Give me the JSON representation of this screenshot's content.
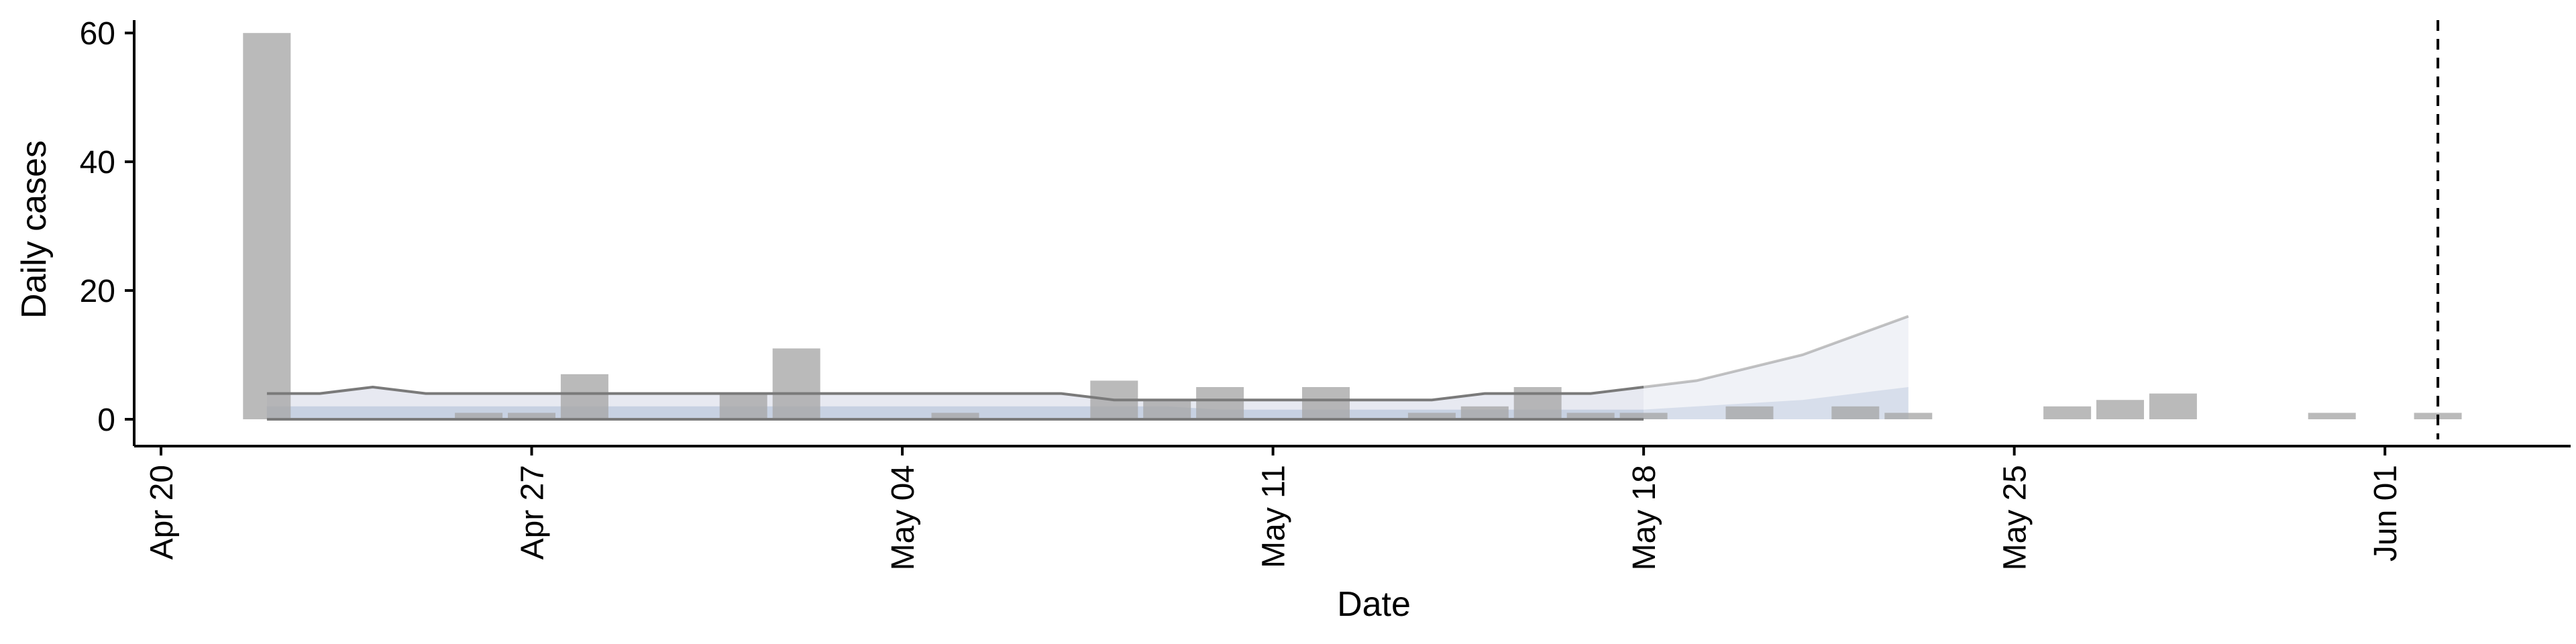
{
  "chart_data": {
    "type": "bar",
    "title": "",
    "xlabel": "Date",
    "ylabel": "Daily cases",
    "ylim": [
      0,
      62
    ],
    "xlim": [
      "2020-04-20",
      "2020-06-04"
    ],
    "yticks": [
      0,
      20,
      40,
      60
    ],
    "xticks": [
      {
        "date": "2020-04-20",
        "label": "Apr 20"
      },
      {
        "date": "2020-04-27",
        "label": "Apr 27"
      },
      {
        "date": "2020-05-04",
        "label": "May 04"
      },
      {
        "date": "2020-05-11",
        "label": "May 11"
      },
      {
        "date": "2020-05-18",
        "label": "May 18"
      },
      {
        "date": "2020-05-25",
        "label": "May 25"
      },
      {
        "date": "2020-06-01",
        "label": "Jun 01"
      }
    ],
    "grid": false,
    "legend": "none",
    "cases": [
      {
        "date": "2020-04-22",
        "value": 60
      },
      {
        "date": "2020-04-26",
        "value": 1
      },
      {
        "date": "2020-04-27",
        "value": 1
      },
      {
        "date": "2020-04-28",
        "value": 7
      },
      {
        "date": "2020-05-01",
        "value": 4
      },
      {
        "date": "2020-05-02",
        "value": 11
      },
      {
        "date": "2020-05-05",
        "value": 1
      },
      {
        "date": "2020-05-08",
        "value": 6
      },
      {
        "date": "2020-05-09",
        "value": 3
      },
      {
        "date": "2020-05-10",
        "value": 5
      },
      {
        "date": "2020-05-12",
        "value": 5
      },
      {
        "date": "2020-05-14",
        "value": 1
      },
      {
        "date": "2020-05-15",
        "value": 2
      },
      {
        "date": "2020-05-16",
        "value": 5
      },
      {
        "date": "2020-05-17",
        "value": 1
      },
      {
        "date": "2020-05-18",
        "value": 1
      },
      {
        "date": "2020-05-20",
        "value": 2
      },
      {
        "date": "2020-05-22",
        "value": 2
      },
      {
        "date": "2020-05-23",
        "value": 1
      },
      {
        "date": "2020-05-26",
        "value": 2
      },
      {
        "date": "2020-05-27",
        "value": 3
      },
      {
        "date": "2020-05-28",
        "value": 4
      },
      {
        "date": "2020-05-31",
        "value": 1
      },
      {
        "date": "2020-06-02",
        "value": 1
      }
    ],
    "estimate": {
      "dates": [
        "2020-04-22",
        "2020-04-23",
        "2020-04-24",
        "2020-04-25",
        "2020-04-26",
        "2020-04-27",
        "2020-04-28",
        "2020-04-29",
        "2020-04-30",
        "2020-05-01",
        "2020-05-02",
        "2020-05-03",
        "2020-05-04",
        "2020-05-05",
        "2020-05-06",
        "2020-05-07",
        "2020-05-08",
        "2020-05-09",
        "2020-05-10",
        "2020-05-11",
        "2020-05-12",
        "2020-05-13",
        "2020-05-14",
        "2020-05-15",
        "2020-05-16",
        "2020-05-17",
        "2020-05-18",
        "2020-05-19",
        "2020-05-20",
        "2020-05-21",
        "2020-05-22",
        "2020-05-23"
      ],
      "upper_90": [
        4,
        4,
        5,
        4,
        4,
        4,
        4,
        4,
        4,
        4,
        4,
        4,
        4,
        4,
        4,
        4,
        3,
        3,
        3,
        3,
        3,
        3,
        3,
        4,
        4,
        4,
        5,
        6,
        8,
        10,
        13,
        16
      ],
      "upper_50": [
        2,
        2,
        2,
        2,
        2,
        2,
        2,
        2,
        2,
        2,
        2,
        2,
        2,
        2,
        2,
        2,
        2,
        2,
        1.5,
        1.5,
        1.5,
        1.5,
        1.5,
        1.5,
        1.5,
        1.5,
        1.5,
        2,
        2.5,
        3,
        4,
        5
      ],
      "lower_90": [
        0,
        0,
        0,
        0,
        0,
        0,
        0,
        0,
        0,
        0,
        0,
        0,
        0,
        0,
        0,
        0,
        0,
        0,
        0,
        0,
        0,
        0,
        0,
        0,
        0,
        0,
        0,
        0,
        0,
        0,
        0,
        0
      ],
      "phase_split": "2020-05-18"
    },
    "marker_date": "2020-06-02",
    "colors": {
      "bars": "#a6a6a6",
      "band_outer": "#e4e7f0",
      "band_inner": "#b9c6dc",
      "line_upper": "#7a7a7a",
      "line_lower": "#7a7a7a",
      "axis": "#000000"
    }
  }
}
